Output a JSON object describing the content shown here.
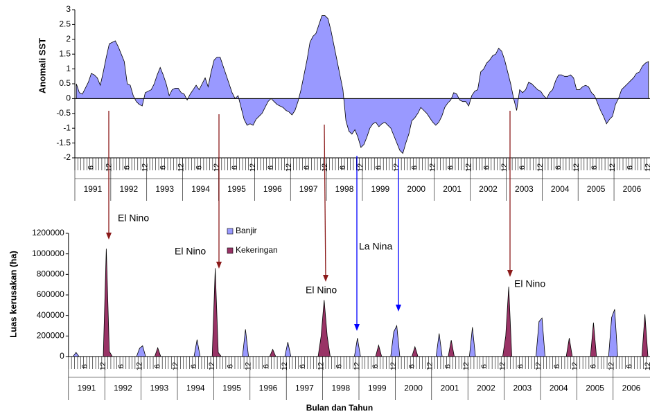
{
  "chart_data": [
    {
      "type": "area",
      "y_label": "Anomali SST",
      "color": "#9999ff",
      "ylim": [
        -2,
        3
      ],
      "yticks": [
        -2,
        -1.5,
        -1,
        -0.5,
        0,
        0.5,
        1,
        1.5,
        2,
        2.5,
        3
      ],
      "categories": [
        null,
        null,
        null,
        null,
        null,
        "6",
        null,
        null,
        null,
        null,
        null,
        "12",
        null,
        null,
        null,
        null,
        null,
        "6",
        null,
        null,
        null,
        null,
        null,
        "12",
        null,
        null,
        null,
        null,
        null,
        "6",
        null,
        null,
        null,
        null,
        null,
        "12",
        null,
        null,
        null,
        null,
        null,
        "6",
        null,
        null,
        null,
        null,
        null,
        "12",
        null,
        null,
        null,
        null,
        null,
        "6",
        null,
        null,
        null,
        null,
        null,
        "12",
        null,
        null,
        null,
        null,
        null,
        "6",
        null,
        null,
        null,
        null,
        null,
        "12",
        null,
        null,
        null,
        null,
        null,
        "6",
        null,
        null,
        null,
        null,
        null,
        "12",
        null,
        null,
        null,
        null,
        null,
        "6",
        null,
        null,
        null,
        null,
        null,
        "12",
        null,
        null,
        null,
        null,
        null,
        "6",
        null,
        null,
        null,
        null,
        null,
        "12",
        null,
        null,
        null,
        null,
        null,
        "6",
        null,
        null,
        null,
        null,
        null,
        "12",
        null,
        null,
        null,
        null,
        null,
        "6",
        null,
        null,
        null,
        null,
        null,
        "12",
        null,
        null,
        null,
        null,
        null,
        "6",
        null,
        null,
        null,
        null,
        null,
        "12",
        null,
        null,
        null,
        null,
        null,
        "6",
        null,
        null,
        null,
        null,
        null,
        "12",
        null,
        null,
        null,
        null,
        null,
        "6",
        null,
        null,
        null,
        null,
        null,
        "12",
        null,
        null,
        null,
        null,
        null,
        "6",
        null,
        null,
        null,
        null,
        null,
        "12",
        null,
        null,
        null,
        null,
        null,
        "6",
        null,
        null,
        null,
        null,
        null,
        "12"
      ],
      "years": [
        "1991",
        "1992",
        "1993",
        "1994",
        "1995",
        "1996",
        "1997",
        "1998",
        "1999",
        "2000",
        "2001",
        "2002",
        "2003",
        "2004",
        "2005",
        "2006"
      ],
      "values": [
        0.5,
        0.2,
        0.15,
        0.35,
        0.55,
        0.85,
        0.8,
        0.7,
        0.45,
        0.9,
        1.4,
        1.85,
        1.9,
        1.95,
        1.75,
        1.5,
        1.25,
        0.5,
        0.45,
        0.1,
        -0.1,
        -0.2,
        -0.25,
        0.2,
        0.25,
        0.3,
        0.5,
        0.8,
        1.05,
        0.8,
        0.5,
        0.1,
        0.3,
        0.35,
        0.35,
        0.2,
        0.15,
        -0.05,
        0.15,
        0.3,
        0.45,
        0.3,
        0.5,
        0.7,
        0.4,
        0.9,
        1.3,
        1.4,
        1.4,
        1.1,
        0.8,
        0.5,
        0.2,
        0,
        0.1,
        -0.3,
        -0.7,
        -0.9,
        -0.85,
        -0.9,
        -0.7,
        -0.6,
        -0.5,
        -0.3,
        -0.1,
        0,
        -0.1,
        -0.2,
        -0.25,
        -0.3,
        -0.4,
        -0.45,
        -0.55,
        -0.4,
        -0.1,
        0.3,
        0.8,
        1.3,
        1.9,
        2.1,
        2.2,
        2.5,
        2.8,
        2.8,
        2.7,
        2.3,
        1.8,
        1.3,
        0.8,
        0.3,
        -0.75,
        -1.1,
        -1.2,
        -1.05,
        -1.3,
        -1.65,
        -1.55,
        -1.3,
        -1,
        -0.85,
        -0.8,
        -0.95,
        -0.85,
        -0.8,
        -0.9,
        -1,
        -1.25,
        -1.5,
        -1.75,
        -1.85,
        -1.5,
        -1.2,
        -0.75,
        -0.65,
        -0.5,
        -0.3,
        -0.4,
        -0.5,
        -0.65,
        -0.8,
        -0.9,
        -0.8,
        -0.6,
        -0.3,
        -0.15,
        -0.05,
        0.2,
        0.15,
        -0.05,
        -0.1,
        -0.1,
        -0.25,
        0.1,
        0.25,
        0.3,
        0.9,
        1,
        1.2,
        1.3,
        1.45,
        1.5,
        1.7,
        1.6,
        1.3,
        0.9,
        0.5,
        0,
        -0.4,
        0.3,
        0.2,
        0.3,
        0.55,
        0.5,
        0.4,
        0.3,
        0.25,
        0.1,
        0,
        0.2,
        0.3,
        0.6,
        0.8,
        0.8,
        0.75,
        0.75,
        0.8,
        0.7,
        0.3,
        0.3,
        0.4,
        0.45,
        0.4,
        0.2,
        0.1,
        -0.15,
        -0.4,
        -0.6,
        -0.85,
        -0.7,
        -0.6,
        -0.2,
        0,
        0.3,
        0.4,
        0.5,
        0.6,
        0.7,
        0.85,
        0.9,
        1.1,
        1.2,
        1.25
      ]
    },
    {
      "type": "area",
      "y_label": "Luas kerusakan (ha)",
      "x_label": "Bulan dan Tahun",
      "ylim": [
        0,
        1200000
      ],
      "yticks": [
        0,
        200000,
        400000,
        600000,
        800000,
        1000000,
        1200000
      ],
      "categories": [
        null,
        null,
        null,
        null,
        null,
        "6",
        null,
        null,
        null,
        null,
        null,
        "12",
        null,
        null,
        null,
        null,
        null,
        "6",
        null,
        null,
        null,
        null,
        null,
        "12",
        null,
        null,
        null,
        null,
        null,
        "6",
        null,
        null,
        null,
        null,
        null,
        "12",
        null,
        null,
        null,
        null,
        null,
        "6",
        null,
        null,
        null,
        null,
        null,
        "12",
        null,
        null,
        null,
        null,
        null,
        "6",
        null,
        null,
        null,
        null,
        null,
        "12",
        null,
        null,
        null,
        null,
        null,
        "6",
        null,
        null,
        null,
        null,
        null,
        "12",
        null,
        null,
        null,
        null,
        null,
        "6",
        null,
        null,
        null,
        null,
        null,
        "12",
        null,
        null,
        null,
        null,
        null,
        "6",
        null,
        null,
        null,
        null,
        null,
        "12",
        null,
        null,
        null,
        null,
        null,
        "6",
        null,
        null,
        null,
        null,
        null,
        "12",
        null,
        null,
        null,
        null,
        null,
        "6",
        null,
        null,
        null,
        null,
        null,
        "12",
        null,
        null,
        null,
        null,
        null,
        "6",
        null,
        null,
        null,
        null,
        null,
        "12",
        null,
        null,
        null,
        null,
        null,
        "6",
        null,
        null,
        null,
        null,
        null,
        "12",
        null,
        null,
        null,
        null,
        null,
        "6",
        null,
        null,
        null,
        null,
        null,
        "12",
        null,
        null,
        null,
        null,
        null,
        "6",
        null,
        null,
        null,
        null,
        null,
        "12",
        null,
        null,
        null,
        null,
        null,
        "6",
        null,
        null,
        null,
        null,
        null,
        "12",
        null,
        null,
        null,
        null,
        null,
        "6",
        null,
        null,
        null,
        null,
        null,
        "12"
      ],
      "years": [
        "1991",
        "1992",
        "1993",
        "1994",
        "1995",
        "1996",
        "1997",
        "1998",
        "1999",
        "2000",
        "2001",
        "2002",
        "2003",
        "2004",
        "2005",
        "2006"
      ],
      "series": [
        {
          "name": "Banjir",
          "color": "#9999ff",
          "values": [
            0,
            0,
            40000,
            0,
            0,
            0,
            0,
            0,
            0,
            0,
            0,
            0,
            0,
            0,
            0,
            0,
            0,
            0,
            0,
            0,
            0,
            0,
            0,
            80000,
            105000,
            0,
            0,
            0,
            0,
            0,
            0,
            0,
            0,
            0,
            0,
            0,
            0,
            0,
            0,
            0,
            0,
            0,
            165000,
            0,
            0,
            0,
            0,
            0,
            0,
            0,
            0,
            0,
            0,
            0,
            0,
            0,
            0,
            0,
            265000,
            0,
            0,
            0,
            0,
            0,
            0,
            0,
            0,
            0,
            0,
            0,
            0,
            0,
            140000,
            0,
            0,
            0,
            0,
            0,
            0,
            0,
            0,
            0,
            0,
            0,
            0,
            0,
            0,
            0,
            0,
            0,
            0,
            0,
            0,
            0,
            0,
            180000,
            0,
            0,
            0,
            0,
            0,
            0,
            0,
            0,
            0,
            0,
            0,
            240000,
            300000,
            0,
            0,
            0,
            0,
            0,
            0,
            0,
            0,
            0,
            0,
            0,
            0,
            0,
            225000,
            0,
            0,
            0,
            0,
            0,
            0,
            0,
            0,
            0,
            0,
            285000,
            0,
            0,
            0,
            0,
            0,
            0,
            0,
            0,
            0,
            0,
            0,
            0,
            0,
            0,
            0,
            0,
            0,
            0,
            0,
            0,
            0,
            340000,
            375000,
            0,
            0,
            0,
            0,
            0,
            0,
            0,
            0,
            0,
            0,
            0,
            0,
            0,
            0,
            0,
            0,
            0,
            0,
            0,
            0,
            0,
            0,
            380000,
            460000,
            0,
            0,
            0,
            0,
            0,
            0,
            0,
            0,
            0,
            0,
            0
          ]
        },
        {
          "name": "Kekeringan",
          "color": "#993366",
          "values": [
            0,
            0,
            0,
            0,
            0,
            0,
            0,
            0,
            0,
            0,
            0,
            0,
            1050000,
            50000,
            0,
            0,
            0,
            0,
            0,
            0,
            0,
            0,
            0,
            0,
            0,
            0,
            0,
            0,
            0,
            85000,
            0,
            0,
            0,
            0,
            0,
            0,
            0,
            0,
            0,
            0,
            0,
            0,
            0,
            0,
            0,
            0,
            0,
            0,
            860000,
            40000,
            0,
            0,
            0,
            0,
            0,
            0,
            0,
            0,
            0,
            0,
            0,
            0,
            0,
            0,
            0,
            0,
            0,
            70000,
            0,
            0,
            0,
            0,
            0,
            0,
            0,
            0,
            0,
            0,
            0,
            0,
            0,
            0,
            0,
            200000,
            550000,
            200000,
            0,
            0,
            0,
            0,
            0,
            0,
            0,
            0,
            0,
            0,
            0,
            0,
            0,
            0,
            0,
            0,
            110000,
            0,
            0,
            0,
            0,
            0,
            0,
            0,
            0,
            0,
            0,
            0,
            95000,
            0,
            0,
            0,
            0,
            0,
            0,
            0,
            0,
            0,
            0,
            0,
            160000,
            0,
            0,
            0,
            0,
            0,
            0,
            0,
            0,
            0,
            0,
            0,
            0,
            0,
            0,
            0,
            0,
            0,
            200000,
            680000,
            0,
            0,
            0,
            0,
            0,
            0,
            0,
            0,
            0,
            0,
            0,
            0,
            0,
            0,
            0,
            0,
            0,
            0,
            0,
            180000,
            0,
            0,
            0,
            0,
            0,
            0,
            0,
            330000,
            0,
            0,
            0,
            0,
            0,
            0,
            0,
            0,
            0,
            0,
            0,
            0,
            0,
            0,
            0,
            0,
            410000,
            0
          ]
        }
      ]
    }
  ],
  "annotations": [
    "El Nino",
    "El Nino",
    "El Nino",
    "La Nina",
    "El Nino"
  ]
}
